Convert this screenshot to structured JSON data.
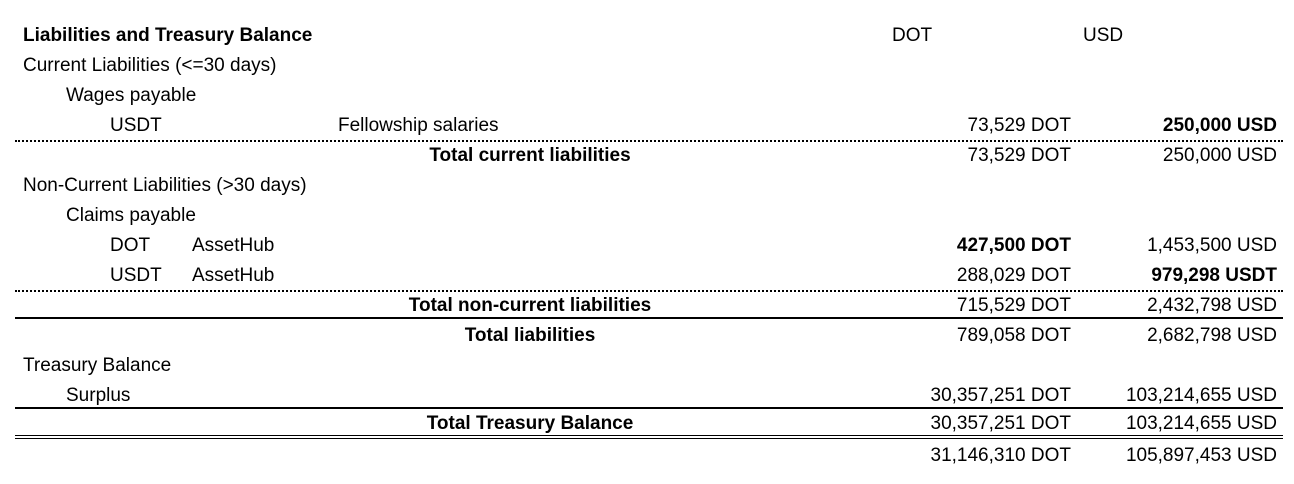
{
  "header": {
    "title": "Liabilities and Treasury Balance",
    "col_dot": "DOT",
    "col_usd": "USD"
  },
  "current": {
    "label": "Current Liabilities (<=30 days)",
    "wages_label": "Wages payable",
    "row1": {
      "asset": "USDT",
      "desc": "Fellowship salaries",
      "dot": "73,529 DOT",
      "usd": "250,000 USD"
    },
    "total_label": "Total current liabilities",
    "total_dot": "73,529 DOT",
    "total_usd": "250,000 USD"
  },
  "noncurrent": {
    "label": "Non-Current Liabilities (>30 days)",
    "claims_label": "Claims payable",
    "row1": {
      "asset": "DOT",
      "desc": "AssetHub",
      "dot": "427,500 DOT",
      "usd": "1,453,500 USD"
    },
    "row2": {
      "asset": "USDT",
      "desc": "AssetHub",
      "dot": "288,029 DOT",
      "usd": "979,298 USDT"
    },
    "total_label": "Total non-current liabilities",
    "total_dot": "715,529 DOT",
    "total_usd": "2,432,798 USD"
  },
  "total_liabilities": {
    "label": "Total liabilities",
    "dot": "789,058 DOT",
    "usd": "2,682,798 USD"
  },
  "treasury": {
    "label": "Treasury Balance",
    "surplus": {
      "label": "Surplus",
      "dot": "30,357,251 DOT",
      "usd": "103,214,655 USD"
    },
    "total_label": "Total Treasury Balance",
    "total_dot": "30,357,251 DOT",
    "total_usd": "103,214,655 USD"
  },
  "grand_total": {
    "dot": "31,146,310 DOT",
    "usd": "105,897,453 USD"
  }
}
